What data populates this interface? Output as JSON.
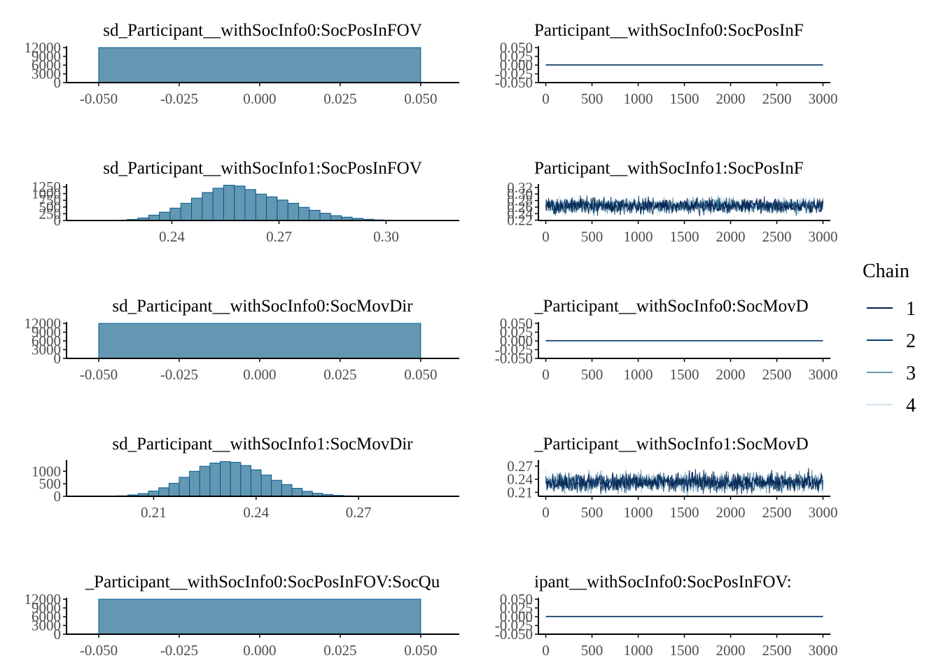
{
  "chart_data": {
    "type": "mcmc-diagnostics",
    "legend": {
      "title": "Chain",
      "entries": [
        {
          "label": "1",
          "color": "#011f4b"
        },
        {
          "label": "2",
          "color": "#03396c"
        },
        {
          "label": "3",
          "color": "#6497b1"
        },
        {
          "label": "4",
          "color": "#d1e1ec"
        }
      ]
    },
    "histogram_style": {
      "fill": "#6497b1",
      "stroke": "#005b96"
    },
    "panels": [
      {
        "title_hist": "sd_Participant__withSocInfo0:SocPosInFOV",
        "title_trace": "Participant__withSocInfo0:SocPosInF",
        "hist": {
          "type": "histogram",
          "xlim": [
            -0.06,
            0.062
          ],
          "ylim": [
            0,
            12000
          ],
          "xticks": [
            -0.05,
            -0.025,
            0.0,
            0.025,
            0.05
          ],
          "xtick_labels": [
            "-0.050",
            "-0.025",
            "0.000",
            "0.025",
            "0.050"
          ],
          "yticks": [
            0,
            3000,
            6000,
            9000,
            12000
          ],
          "ytick_labels": [
            "0",
            "3000",
            "6000",
            "9000",
            "12000"
          ],
          "bin_edges": [
            -0.05,
            0.05
          ],
          "counts": [
            12000
          ]
        },
        "trace": {
          "type": "line",
          "xlim": [
            -80,
            3080
          ],
          "ylim": [
            -0.05,
            0.05
          ],
          "xticks": [
            0,
            500,
            1000,
            1500,
            2000,
            2500,
            3000
          ],
          "xtick_labels": [
            "0",
            "500",
            "1000",
            "1500",
            "2000",
            "2500",
            "3000"
          ],
          "yticks": [
            -0.05,
            -0.025,
            0.0,
            0.025,
            0.05
          ],
          "ytick_labels": [
            "-0.050",
            "-0.025",
            "0.000",
            "0.025",
            "0.050"
          ],
          "iterations": 3000,
          "constant": 0.0
        }
      },
      {
        "title_hist": "sd_Participant__withSocInfo1:SocPosInFOV",
        "title_trace": "Participant__withSocInfo1:SocPosInF",
        "hist": {
          "type": "histogram",
          "xlim": [
            0.2105,
            0.3205
          ],
          "ylim": [
            0,
            1300
          ],
          "xticks": [
            0.24,
            0.27,
            0.3
          ],
          "xtick_labels": [
            "0.24",
            "0.27",
            "0.30"
          ],
          "yticks": [
            0,
            250,
            500,
            750,
            1000,
            1250
          ],
          "ytick_labels": [
            "0",
            "250",
            "500",
            "750",
            "1000",
            "1250"
          ],
          "bin_edges": [
            0.215,
            0.2185,
            0.2215,
            0.2245,
            0.2275,
            0.2305,
            0.2335,
            0.2365,
            0.2395,
            0.2425,
            0.2455,
            0.2485,
            0.2515,
            0.2545,
            0.2575,
            0.2605,
            0.2635,
            0.2665,
            0.2695,
            0.2725,
            0.2755,
            0.2785,
            0.2815,
            0.2845,
            0.2875,
            0.2905,
            0.2935,
            0.2965,
            0.2995,
            0.3025,
            0.3055,
            0.3085,
            0.3115
          ],
          "counts": [
            1,
            2,
            5,
            15,
            40,
            95,
            200,
            310,
            460,
            640,
            830,
            1040,
            1200,
            1310,
            1280,
            1150,
            980,
            880,
            760,
            640,
            490,
            380,
            270,
            180,
            125,
            80,
            45,
            22,
            10,
            5,
            2,
            1
          ]
        },
        "trace": {
          "type": "line",
          "xlim": [
            -80,
            3080
          ],
          "ylim": [
            0.219,
            0.326
          ],
          "xticks": [
            0,
            500,
            1000,
            1500,
            2000,
            2500,
            3000
          ],
          "xtick_labels": [
            "0",
            "500",
            "1000",
            "1500",
            "2000",
            "2500",
            "3000"
          ],
          "yticks": [
            0.22,
            0.24,
            0.26,
            0.28,
            0.3,
            0.32
          ],
          "ytick_labels": [
            "0.22",
            "0.24",
            "0.26",
            "0.28",
            "0.30",
            "0.32"
          ],
          "iterations": 3000,
          "mean": 0.264,
          "sd": 0.0115
        }
      },
      {
        "title_hist": "sd_Participant__withSocInfo0:SocMovDir",
        "title_trace": "_Participant__withSocInfo0:SocMovD",
        "hist": {
          "type": "histogram",
          "xlim": [
            -0.06,
            0.062
          ],
          "ylim": [
            0,
            12000
          ],
          "xticks": [
            -0.05,
            -0.025,
            0.0,
            0.025,
            0.05
          ],
          "xtick_labels": [
            "-0.050",
            "-0.025",
            "0.000",
            "0.025",
            "0.050"
          ],
          "yticks": [
            0,
            3000,
            6000,
            9000,
            12000
          ],
          "ytick_labels": [
            "0",
            "3000",
            "6000",
            "9000",
            "12000"
          ],
          "bin_edges": [
            -0.05,
            0.05
          ],
          "counts": [
            12000
          ]
        },
        "trace": {
          "type": "line",
          "xlim": [
            -80,
            3080
          ],
          "ylim": [
            -0.05,
            0.05
          ],
          "xticks": [
            0,
            500,
            1000,
            1500,
            2000,
            2500,
            3000
          ],
          "xtick_labels": [
            "0",
            "500",
            "1000",
            "1500",
            "2000",
            "2500",
            "3000"
          ],
          "yticks": [
            -0.05,
            -0.025,
            0.0,
            0.025,
            0.05
          ],
          "ytick_labels": [
            "-0.050",
            "-0.025",
            "0.000",
            "0.025",
            "0.050"
          ],
          "iterations": 3000,
          "constant": 0.0
        }
      },
      {
        "title_hist": "sd_Participant__withSocInfo1:SocMovDir",
        "title_trace": "_Participant__withSocInfo1:SocMovD",
        "hist": {
          "type": "histogram",
          "xlim": [
            0.1845,
            0.2995
          ],
          "ylim": [
            0,
            1400
          ],
          "xticks": [
            0.21,
            0.24,
            0.27
          ],
          "xtick_labels": [
            "0.21",
            "0.24",
            "0.27"
          ],
          "yticks": [
            0,
            500,
            1000
          ],
          "ytick_labels": [
            "0",
            "500",
            "1000"
          ],
          "bin_edges": [
            0.1935,
            0.1965,
            0.1995,
            0.2025,
            0.2055,
            0.2085,
            0.2115,
            0.2145,
            0.2175,
            0.2205,
            0.2235,
            0.2265,
            0.2295,
            0.2325,
            0.2355,
            0.2385,
            0.2415,
            0.2445,
            0.2475,
            0.2505,
            0.2535,
            0.2565,
            0.2595,
            0.2625,
            0.2655,
            0.2685,
            0.2715,
            0.2745,
            0.2775,
            0.2805,
            0.2835
          ],
          "counts": [
            2,
            8,
            20,
            55,
            110,
            210,
            340,
            520,
            760,
            1000,
            1200,
            1330,
            1390,
            1360,
            1230,
            1060,
            850,
            640,
            470,
            320,
            200,
            120,
            70,
            35,
            18,
            8,
            4,
            2,
            1,
            1
          ]
        },
        "trace": {
          "type": "line",
          "xlim": [
            -80,
            3080
          ],
          "ylim": [
            0.201,
            0.281
          ],
          "xticks": [
            0,
            500,
            1000,
            1500,
            2000,
            2500,
            3000
          ],
          "xtick_labels": [
            "0",
            "500",
            "1000",
            "1500",
            "2000",
            "2500",
            "3000"
          ],
          "yticks": [
            0.21,
            0.24,
            0.27
          ],
          "ytick_labels": [
            "0.21",
            "0.24",
            "0.27"
          ],
          "iterations": 3000,
          "mean": 0.2325,
          "sd": 0.0105
        }
      },
      {
        "title_hist": "_Participant__withSocInfo0:SocPosInFOV:SocQu",
        "title_trace": "ipant__withSocInfo0:SocPosInFOV:",
        "hist": {
          "type": "histogram",
          "xlim": [
            -0.06,
            0.062
          ],
          "ylim": [
            0,
            12000
          ],
          "xticks": [
            -0.05,
            -0.025,
            0.0,
            0.025,
            0.05
          ],
          "xtick_labels": [
            "-0.050",
            "-0.025",
            "0.000",
            "0.025",
            "0.050"
          ],
          "yticks": [
            0,
            3000,
            6000,
            9000,
            12000
          ],
          "ytick_labels": [
            "0",
            "3000",
            "6000",
            "9000",
            "12000"
          ],
          "bin_edges": [
            -0.05,
            0.05
          ],
          "counts": [
            12000
          ]
        },
        "trace": {
          "type": "line",
          "xlim": [
            -80,
            3080
          ],
          "ylim": [
            -0.05,
            0.05
          ],
          "xticks": [
            0,
            500,
            1000,
            1500,
            2000,
            2500,
            3000
          ],
          "xtick_labels": [
            "0",
            "500",
            "1000",
            "1500",
            "2000",
            "2500",
            "3000"
          ],
          "yticks": [
            -0.05,
            -0.025,
            0.0,
            0.025,
            0.05
          ],
          "ytick_labels": [
            "-0.050",
            "-0.025",
            "0.000",
            "0.025",
            "0.050"
          ],
          "iterations": 3000,
          "constant": 0.0
        }
      }
    ]
  }
}
